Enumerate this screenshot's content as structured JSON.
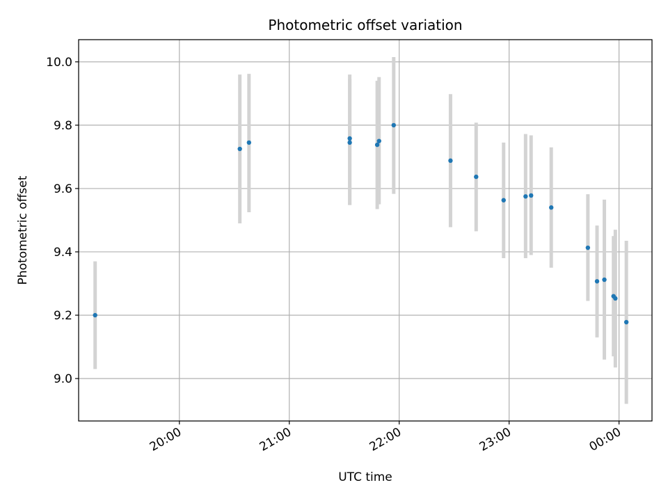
{
  "chart_data": {
    "type": "scatter",
    "title": "Photometric offset variation",
    "xlabel": "UTC time",
    "ylabel": "Photometric offset",
    "x_axis": {
      "kind": "time",
      "range": [
        "19:05",
        "00:18"
      ],
      "ticks": [
        "20:00",
        "21:00",
        "22:00",
        "23:00",
        "00:00"
      ]
    },
    "y_axis": {
      "range": [
        8.866,
        10.07
      ],
      "ticks": [
        "9.0",
        "9.2",
        "9.4",
        "9.6",
        "9.8",
        "10.0"
      ]
    },
    "grid": true,
    "marker_color": "#1f77b4",
    "errorbar_color": "#d3d3d3",
    "points": [
      {
        "time": "19:14",
        "y": 9.2,
        "low": 9.03,
        "high": 9.37
      },
      {
        "time": "20:33",
        "y": 9.725,
        "low": 9.49,
        "high": 9.96
      },
      {
        "time": "20:38",
        "y": 9.745,
        "low": 9.525,
        "high": 9.962
      },
      {
        "time": "21:33",
        "y": 9.758,
        "low": 9.548,
        "high": 9.96
      },
      {
        "time": "21:33",
        "y": 9.745,
        "low": 9.548,
        "high": 9.945
      },
      {
        "time": "21:48",
        "y": 9.738,
        "low": 9.535,
        "high": 9.94
      },
      {
        "time": "21:49",
        "y": 9.75,
        "low": 9.55,
        "high": 9.952
      },
      {
        "time": "21:57",
        "y": 9.8,
        "low": 9.583,
        "high": 10.015
      },
      {
        "time": "22:28",
        "y": 9.688,
        "low": 9.478,
        "high": 9.898
      },
      {
        "time": "22:42",
        "y": 9.637,
        "low": 9.465,
        "high": 9.808
      },
      {
        "time": "22:57",
        "y": 9.563,
        "low": 9.38,
        "high": 9.745
      },
      {
        "time": "23:09",
        "y": 9.575,
        "low": 9.38,
        "high": 9.772
      },
      {
        "time": "23:12",
        "y": 9.578,
        "low": 9.39,
        "high": 9.768
      },
      {
        "time": "23:23",
        "y": 9.54,
        "low": 9.35,
        "high": 9.73
      },
      {
        "time": "23:43",
        "y": 9.413,
        "low": 9.245,
        "high": 9.582
      },
      {
        "time": "23:48",
        "y": 9.307,
        "low": 9.13,
        "high": 9.483
      },
      {
        "time": "23:52",
        "y": 9.312,
        "low": 9.06,
        "high": 9.565
      },
      {
        "time": "23:57",
        "y": 9.26,
        "low": 9.07,
        "high": 9.45
      },
      {
        "time": "23:58",
        "y": 9.253,
        "low": 9.035,
        "high": 9.47
      },
      {
        "time": "00:04",
        "y": 9.178,
        "low": 8.92,
        "high": 9.435
      }
    ]
  }
}
